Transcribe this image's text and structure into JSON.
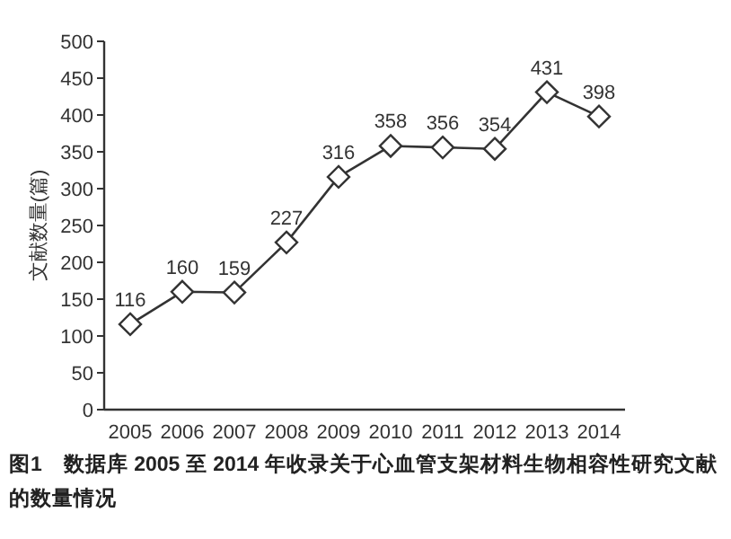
{
  "chart_data": {
    "type": "line",
    "ylabel": "文献数量(篇)",
    "categories": [
      "2005",
      "2006",
      "2007",
      "2008",
      "2009",
      "2010",
      "2011",
      "2012",
      "2013",
      "2014"
    ],
    "series": [
      {
        "color": "#333333",
        "values": [
          116,
          160,
          159,
          227,
          316,
          358,
          356,
          354,
          431,
          398
        ]
      }
    ],
    "ylim": [
      0,
      500
    ],
    "yticks": [
      0,
      50,
      100,
      150,
      200,
      250,
      300,
      350,
      400,
      450,
      500
    ],
    "marker": "diamond",
    "data_labels": true,
    "annotations": [
      "图1　数据库 2005 至 2014 年收录关于心血管支架材料生物相容性研究文献的数量情况"
    ]
  }
}
